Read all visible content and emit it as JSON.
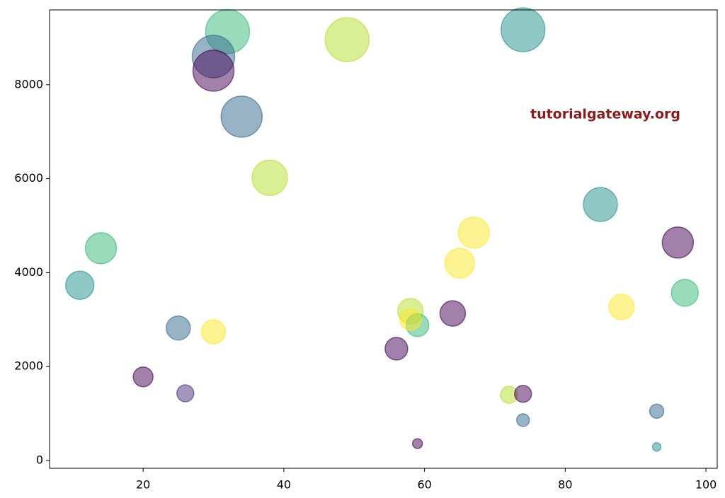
{
  "chart_data": {
    "type": "scatter",
    "annotation": "tutorialgateway.org",
    "x": [
      32,
      30,
      30,
      34,
      49,
      74,
      38,
      85,
      14,
      11,
      67,
      65,
      96,
      97,
      88,
      58,
      59,
      58,
      64,
      25,
      30,
      56,
      20,
      26,
      72,
      74,
      93,
      74,
      59,
      93
    ],
    "y": [
      9130,
      8600,
      8300,
      7320,
      8960,
      9170,
      6020,
      5450,
      4520,
      3730,
      4850,
      4200,
      4640,
      3570,
      3270,
      3180,
      2880,
      3000,
      3130,
      2820,
      2740,
      2380,
      1780,
      1430,
      1400,
      1420,
      1050,
      860,
      360,
      290
    ],
    "sizes": [
      961,
      900,
      841,
      841,
      961,
      961,
      625,
      576,
      484,
      400,
      484,
      441,
      484,
      361,
      324,
      324,
      256,
      225,
      324,
      289,
      289,
      256,
      196,
      144,
      144,
      144,
      100,
      81,
      49,
      36
    ],
    "colors": [
      "#35b779",
      "#31688e",
      "#440154",
      "#31688e",
      "#b5de2b",
      "#21918c",
      "#b5de2b",
      "#21918c",
      "#35b779",
      "#21918c",
      "#fde725",
      "#fde725",
      "#440154",
      "#35b779",
      "#fde725",
      "#b5de2b",
      "#35b779",
      "#fde725",
      "#440154",
      "#31688e",
      "#fde725",
      "#440154",
      "#440154",
      "#472d7b",
      "#b5de2b",
      "#440154",
      "#31688e",
      "#31688e",
      "#440154",
      "#21918c"
    ],
    "xlim": [
      6.7,
      101.6
    ],
    "ylim": [
      -166,
      9593
    ],
    "xticks": [
      20,
      40,
      60,
      80,
      100
    ],
    "yticks": [
      0,
      2000,
      4000,
      6000,
      8000
    ]
  }
}
